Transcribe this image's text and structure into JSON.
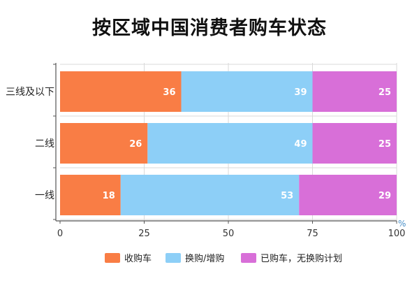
{
  "title": "按区域中国消费者购车状态",
  "chart_data": {
    "type": "bar",
    "orientation": "horizontal",
    "stacked": true,
    "categories": [
      "三线及以下",
      "二线",
      "一线"
    ],
    "series": [
      {
        "name": "收购车",
        "values": [
          36,
          26,
          18
        ],
        "color": "#f97d45"
      },
      {
        "name": "换购/增购",
        "values": [
          39,
          49,
          53
        ],
        "color": "#8dcff7"
      },
      {
        "name": "已购车，无换购计划",
        "values": [
          25,
          25,
          29
        ],
        "color": "#d86fd8"
      }
    ],
    "xlim": [
      0,
      100
    ],
    "xticks": [
      "0",
      "25",
      "50",
      "75",
      "100"
    ],
    "unit": "%",
    "grid": true,
    "legend_position": "bottom"
  }
}
